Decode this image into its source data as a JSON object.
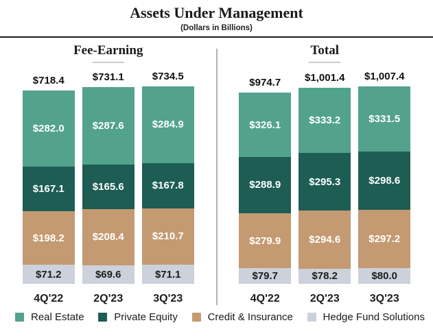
{
  "title": "Assets Under Management",
  "subtitle": "(Dollars in Billions)",
  "colors": {
    "real_estate": "#52a28c",
    "private_equity": "#1d5d53",
    "credit_insurance": "#c49a72",
    "hedge_fund_solutions": "#ccd1dc",
    "label_light": "#ffffff",
    "label_dark": "#1c1c1c"
  },
  "legend": [
    {
      "label": "Real Estate",
      "color": "#52a28c"
    },
    {
      "label": "Private Equity",
      "color": "#1d5d53"
    },
    {
      "label": "Credit & Insurance",
      "color": "#c49a72"
    },
    {
      "label": "Hedge Fund Solutions",
      "color": "#ccd1dc"
    }
  ],
  "chart_data": [
    {
      "type": "bar",
      "stacked": true,
      "title": "Fee-Earning",
      "categories": [
        "4Q'22",
        "2Q'23",
        "3Q'23"
      ],
      "totals": [
        718.4,
        731.1,
        734.5
      ],
      "totals_display": [
        "$718.4",
        "$731.1",
        "$734.5"
      ],
      "series": [
        {
          "name": "Real Estate",
          "color": "#52a28c",
          "text_color": "#ffffff",
          "values": [
            282.0,
            287.6,
            284.9
          ],
          "labels": [
            "$282.0",
            "$287.6",
            "$284.9"
          ]
        },
        {
          "name": "Private Equity",
          "color": "#1d5d53",
          "text_color": "#ffffff",
          "values": [
            167.1,
            165.6,
            167.8
          ],
          "labels": [
            "$167.1",
            "$165.6",
            "$167.8"
          ]
        },
        {
          "name": "Credit & Insurance",
          "color": "#c49a72",
          "text_color": "#ffffff",
          "values": [
            198.2,
            208.4,
            210.7
          ],
          "labels": [
            "$198.2",
            "$208.4",
            "$210.7"
          ]
        },
        {
          "name": "Hedge Fund Solutions",
          "color": "#ccd1dc",
          "text_color": "#1c1c1c",
          "values": [
            71.2,
            69.6,
            71.1
          ],
          "labels": [
            "$71.2",
            "$69.6",
            "$71.1"
          ]
        }
      ]
    },
    {
      "type": "bar",
      "stacked": true,
      "title": "Total",
      "categories": [
        "4Q'22",
        "2Q'23",
        "3Q'23"
      ],
      "totals": [
        974.7,
        1001.4,
        1007.4
      ],
      "totals_display": [
        "$974.7",
        "$1,001.4",
        "$1,007.4"
      ],
      "series": [
        {
          "name": "Real Estate",
          "color": "#52a28c",
          "text_color": "#ffffff",
          "values": [
            326.1,
            333.2,
            331.5
          ],
          "labels": [
            "$326.1",
            "$333.2",
            "$331.5"
          ]
        },
        {
          "name": "Private Equity",
          "color": "#1d5d53",
          "text_color": "#ffffff",
          "values": [
            288.9,
            295.3,
            298.6
          ],
          "labels": [
            "$288.9",
            "$295.3",
            "$298.6"
          ]
        },
        {
          "name": "Credit & Insurance",
          "color": "#c49a72",
          "text_color": "#ffffff",
          "values": [
            279.9,
            294.6,
            297.2
          ],
          "labels": [
            "$279.9",
            "$294.6",
            "$297.2"
          ]
        },
        {
          "name": "Hedge Fund Solutions",
          "color": "#ccd1dc",
          "text_color": "#1c1c1c",
          "values": [
            79.7,
            78.2,
            80.0
          ],
          "labels": [
            "$79.7",
            "$78.2",
            "$80.0"
          ]
        }
      ]
    }
  ]
}
